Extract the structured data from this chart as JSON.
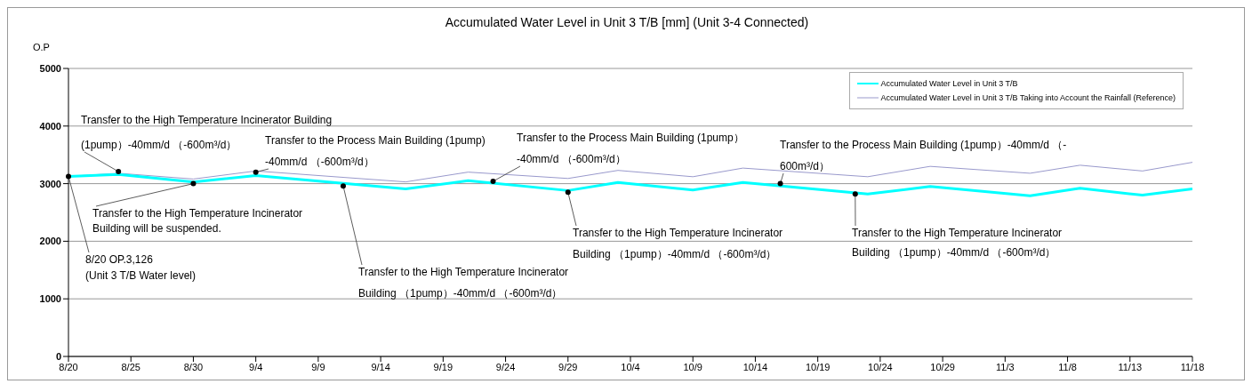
{
  "chart_data": {
    "type": "line",
    "title": "Accumulated Water Level in Unit 3 T/B [mm] (Unit 3-4 Connected)",
    "ylabel": "O.P",
    "x": [
      "--08-20",
      "--08-24",
      "--08-30",
      "--09-04",
      "--09-16",
      "--09-21",
      "--09-29",
      "--10-03",
      "--10-09",
      "--10-13",
      "--10-23",
      "--10-28",
      "--11-05",
      "--11-09",
      "--11-14",
      "--11-18"
    ],
    "series": [
      {
        "name": "Accumulated Water Level in Unit 3 T/B",
        "color": "#00ffff",
        "values": [
          3126,
          3160,
          3030,
          3140,
          2910,
          3050,
          2880,
          3020,
          2890,
          3020,
          2820,
          2950,
          2790,
          2920,
          2800,
          2910
        ]
      },
      {
        "name": "Accumulated Water Level in Unit 3 T/B Taking into Account the Rainfall (Reference)",
        "color": "#9999cc",
        "values": [
          3126,
          3180,
          3080,
          3220,
          3030,
          3200,
          3090,
          3230,
          3120,
          3270,
          3120,
          3300,
          3180,
          3320,
          3220,
          3370
        ]
      }
    ],
    "xlim": [
      "--08-20",
      "--11-18"
    ],
    "xticks": [
      {
        "value": "--08-20",
        "label": "8/20"
      },
      {
        "value": "--08-25",
        "label": "8/25"
      },
      {
        "value": "--08-30",
        "label": "8/30"
      },
      {
        "value": "--09-04",
        "label": "9/4"
      },
      {
        "value": "--09-09",
        "label": "9/9"
      },
      {
        "value": "--09-14",
        "label": "9/14"
      },
      {
        "value": "--09-19",
        "label": "9/19"
      },
      {
        "value": "--09-24",
        "label": "9/24"
      },
      {
        "value": "--09-29",
        "label": "9/29"
      },
      {
        "value": "--10-04",
        "label": "10/4"
      },
      {
        "value": "--10-09",
        "label": "10/9"
      },
      {
        "value": "--10-14",
        "label": "10/14"
      },
      {
        "value": "--10-19",
        "label": "10/19"
      },
      {
        "value": "--10-24",
        "label": "10/24"
      },
      {
        "value": "--10-29",
        "label": "10/29"
      },
      {
        "value": "--11-03",
        "label": "11/3"
      },
      {
        "value": "--11-08",
        "label": "11/8"
      },
      {
        "value": "--11-13",
        "label": "11/13"
      },
      {
        "value": "--11-18",
        "label": "11/18"
      }
    ],
    "ylim": [
      0,
      5000
    ],
    "yticks": [
      0,
      1000,
      2000,
      3000,
      4000,
      5000
    ],
    "grid": "y",
    "legend": "top right",
    "marker": "none",
    "line_style": "solid",
    "annotations": [
      {
        "text": "Transfer to the High Temperature Incinerator Building\n(1pump）-40mm/d （-600m³/d）",
        "x": "--08-24",
        "y": 3210
      },
      {
        "text": "Transfer to the High Temperature Incinerator\nBuilding will be suspended.",
        "x": "--08-30",
        "y": 3000
      },
      {
        "text": "8/20  OP.3,126\n(Unit 3 T/B Water level)",
        "x": "--08-20",
        "y": 3126
      },
      {
        "text": "Transfer to the Process Main Building (1pump)\n-40mm/d （-600m³/d）",
        "x": "--09-04",
        "y": 3200
      },
      {
        "text": "Transfer to the High Temperature Incinerator\nBuilding （1pump）-40mm/d （-600m³/d）",
        "x": "--09-11",
        "y": 2960
      },
      {
        "text": "Transfer to the Process Main Building (1pump）\n-40mm/d （-600m³/d）",
        "x": "--09-23",
        "y": 3040
      },
      {
        "text": "Transfer to the High Temperature Incinerator\nBuilding （1pump）-40mm/d （-600m³/d）",
        "x": "--09-29",
        "y": 2850
      },
      {
        "text": "Transfer to the Process Main Building (1pump）-40mm/d （-\n600m³/d）",
        "x": "--10-16",
        "y": 3000
      },
      {
        "text": "Transfer to the High Temperature Incinerator\nBuilding （1pump）-40mm/d （-600m³/d）",
        "x": "--10-22",
        "y": 2820
      }
    ]
  }
}
